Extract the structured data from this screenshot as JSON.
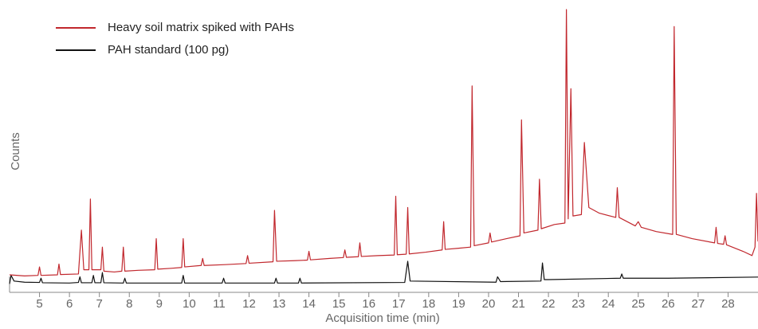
{
  "chart_data": {
    "type": "line",
    "xlabel": "Acquisition time (min)",
    "ylabel": "Counts",
    "xlim": [
      4,
      29
    ],
    "xticks": [
      5,
      6,
      7,
      8,
      9,
      10,
      11,
      12,
      13,
      14,
      15,
      16,
      17,
      18,
      19,
      20,
      21,
      22,
      23,
      24,
      25,
      26,
      27,
      28
    ],
    "ylim": [
      0,
      100
    ],
    "legend": "upper left",
    "series": [
      {
        "name": "Heavy soil matrix spiked with PAHs",
        "color": "#c1272d",
        "x": [
          4.0,
          4.5,
          4.95,
          5.0,
          5.05,
          5.6,
          5.65,
          5.7,
          6.3,
          6.4,
          6.48,
          6.65,
          6.7,
          6.75,
          7.05,
          7.1,
          7.15,
          7.5,
          7.75,
          7.8,
          7.85,
          8.3,
          8.85,
          8.9,
          8.95,
          9.4,
          9.75,
          9.8,
          9.85,
          10.4,
          10.45,
          10.5,
          11.2,
          11.9,
          11.95,
          12.0,
          12.8,
          12.85,
          12.92,
          13.5,
          13.95,
          14.0,
          14.05,
          14.7,
          15.15,
          15.2,
          15.25,
          15.65,
          15.7,
          15.75,
          16.3,
          16.85,
          16.9,
          16.95,
          17.25,
          17.3,
          17.35,
          17.9,
          18.45,
          18.5,
          18.55,
          19.0,
          19.4,
          19.45,
          19.52,
          20.0,
          20.05,
          20.1,
          20.6,
          21.05,
          21.1,
          21.18,
          21.65,
          21.7,
          21.76,
          22.2,
          22.55,
          22.6,
          22.66,
          22.75,
          22.82,
          23.1,
          23.2,
          23.35,
          23.7,
          24.25,
          24.3,
          24.36,
          24.9,
          25.0,
          25.1,
          25.6,
          26.15,
          26.2,
          26.27,
          26.8,
          27.55,
          27.6,
          27.65,
          27.85,
          27.9,
          27.95,
          28.5,
          28.8,
          28.9,
          28.95,
          29.0
        ],
        "values": [
          6.2,
          5.8,
          6.0,
          9.0,
          6.0,
          6.2,
          10,
          6.3,
          6.5,
          22,
          8,
          8,
          33,
          8,
          8,
          16,
          7.5,
          7.2,
          7.5,
          16,
          7.5,
          7.8,
          8,
          19,
          8.2,
          8.5,
          8.8,
          19,
          9,
          9.5,
          12,
          9.5,
          9.8,
          10.2,
          13,
          10.3,
          10.8,
          29,
          11,
          11.2,
          11.4,
          14.5,
          11.5,
          12,
          12.3,
          15,
          12.4,
          12.6,
          17.5,
          12.7,
          13,
          13.2,
          34,
          13.3,
          13.5,
          30,
          13.6,
          14.2,
          15,
          25,
          15.2,
          15.6,
          16,
          73,
          16.5,
          17.5,
          21,
          17.8,
          19,
          20,
          61,
          21,
          22,
          40,
          22.5,
          24,
          24.5,
          100,
          26,
          72,
          27,
          27.5,
          53,
          30,
          28,
          26.5,
          37,
          26.5,
          23.5,
          25,
          23,
          21.5,
          20.5,
          94,
          20.5,
          19,
          17.5,
          23,
          17.3,
          17,
          20,
          16.8,
          14.5,
          13,
          16,
          35,
          18
        ]
      },
      {
        "name": "PAH standard (100 pg)",
        "color": "#111111",
        "x": [
          4.0,
          4.05,
          4.15,
          4.5,
          5.0,
          5.05,
          5.1,
          6.0,
          6.3,
          6.35,
          6.4,
          6.75,
          6.8,
          6.85,
          7.05,
          7.1,
          7.15,
          7.8,
          7.85,
          7.9,
          9.75,
          9.8,
          9.85,
          11.1,
          11.15,
          11.2,
          12.85,
          12.9,
          12.95,
          13.65,
          13.7,
          13.75,
          17.2,
          17.3,
          17.38,
          20.25,
          20.3,
          20.4,
          21.75,
          21.8,
          21.86,
          22.0,
          24.4,
          24.45,
          24.5,
          26.0,
          29.0
        ],
        "values": [
          3.0,
          6,
          4,
          3.6,
          3.5,
          5,
          3.4,
          3.3,
          3.5,
          5.5,
          3.4,
          3.4,
          6,
          3.4,
          3.4,
          7,
          3.4,
          3.3,
          5,
          3.3,
          3.3,
          6,
          3.3,
          3.3,
          5,
          3.3,
          3.3,
          5,
          3.3,
          3.3,
          5,
          3.3,
          3.5,
          11,
          4,
          3.6,
          5.5,
          3.8,
          4,
          10.4,
          4.5,
          4.5,
          5,
          6.5,
          5,
          5,
          5.4
        ]
      }
    ]
  }
}
